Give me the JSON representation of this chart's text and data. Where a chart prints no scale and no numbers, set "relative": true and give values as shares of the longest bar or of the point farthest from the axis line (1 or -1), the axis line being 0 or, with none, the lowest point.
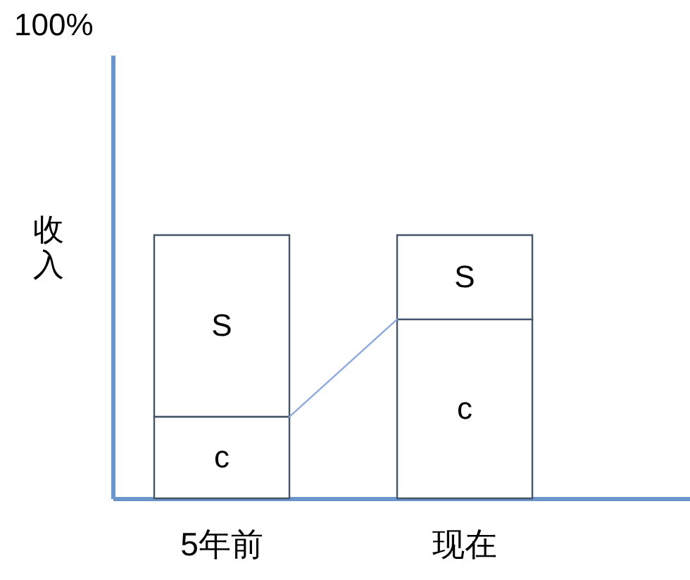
{
  "chart_data": {
    "type": "bar",
    "stacked": true,
    "relative": true,
    "ylabel": "收入",
    "categories": [
      "5年前",
      "现在"
    ],
    "series": [
      {
        "name": "c",
        "color": "#ffffff",
        "values": [
          0.31,
          0.68
        ]
      },
      {
        "name": "S",
        "color": "#ffffff",
        "values": [
          0.69,
          0.32
        ]
      }
    ],
    "annotations": [
      "100%"
    ]
  }
}
